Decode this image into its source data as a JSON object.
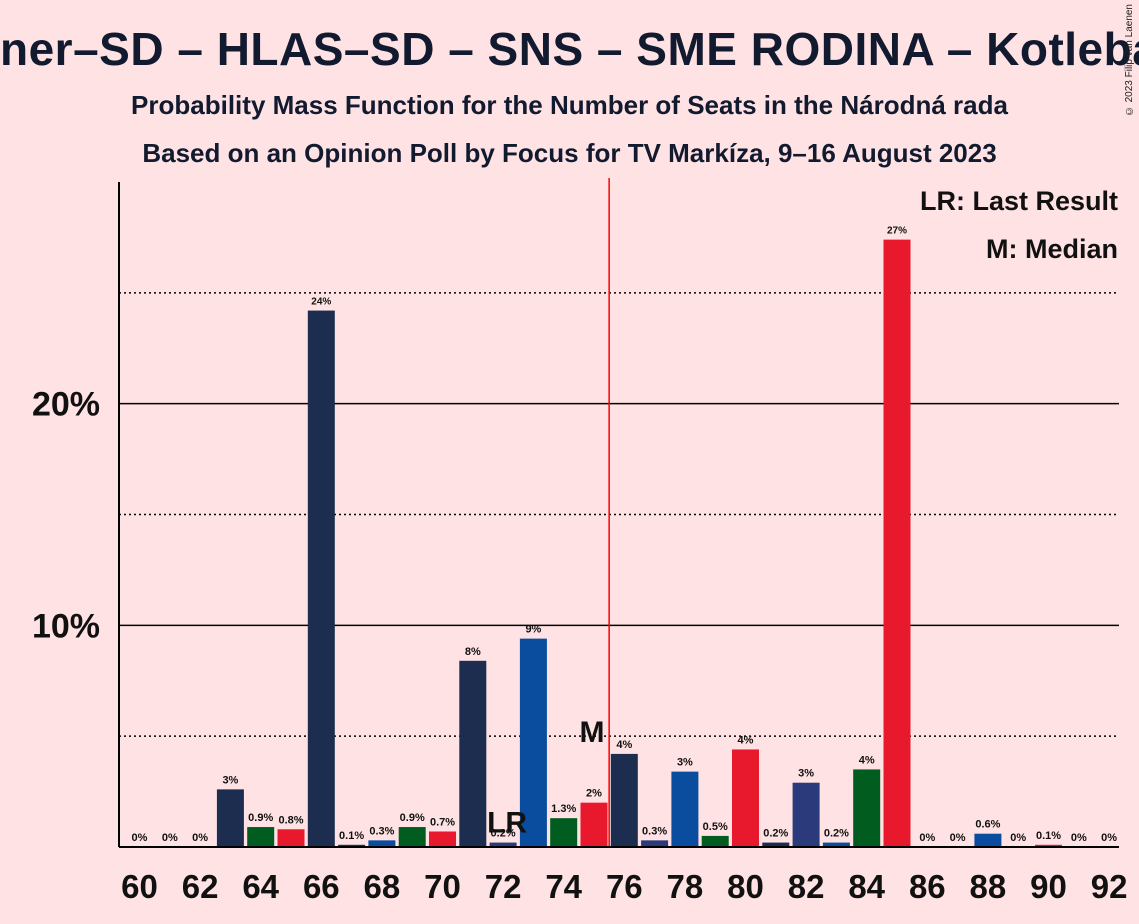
{
  "title": "ner–SD – HLAS–SD – SNS – SME RODINA – Kotleba–ĽS",
  "subtitle": "Probability Mass Function for the Number of Seats in the Národná rada",
  "subtitle2": "Based on an Opinion Poll by Focus for TV Markíza, 9–16 August 2023",
  "copyright": "© 2023 Filip van Laenen",
  "legend": {
    "lr": "LR: Last Result",
    "m": "M: Median"
  },
  "colors": {
    "background": "#ffe2e4",
    "majority_line": "#ff0000"
  },
  "chart_data": {
    "type": "bar",
    "ylim": [
      0,
      30
    ],
    "y_ticks": [
      10,
      20
    ],
    "y_tick_labels": [
      "10%",
      "20%"
    ],
    "dotted_gridlines": [
      5,
      15,
      25
    ],
    "x": [
      60,
      61,
      62,
      63,
      64,
      65,
      66,
      67,
      68,
      69,
      70,
      71,
      72,
      73,
      74,
      75,
      76,
      77,
      78,
      79,
      80,
      81,
      82,
      83,
      84,
      85,
      86,
      87,
      88,
      89,
      90,
      91,
      92
    ],
    "x_tick_labels": [
      "60",
      "62",
      "64",
      "66",
      "68",
      "70",
      "72",
      "74",
      "76",
      "78",
      "80",
      "82",
      "84",
      "86",
      "88",
      "90",
      "92"
    ],
    "values": [
      0,
      0,
      0,
      2.6,
      0.9,
      0.8,
      24.2,
      0.1,
      0.3,
      0.9,
      0.7,
      8.4,
      0.2,
      9.4,
      1.3,
      2.0,
      4.2,
      0.3,
      3.4,
      0.5,
      4.4,
      0.2,
      2.9,
      0.2,
      3.5,
      27.4,
      0,
      0,
      0.6,
      0,
      0.1,
      0,
      0
    ],
    "labels": [
      "0%",
      "0%",
      "0%",
      "3%",
      "0.9%",
      "0.8%",
      "24%",
      "0.1%",
      "0.3%",
      "0.9%",
      "0.7%",
      "8%",
      "0.2%",
      "9%",
      "1.3%",
      "2%",
      "4%",
      "0.3%",
      "3%",
      "0.5%",
      "4%",
      "0.2%",
      "3%",
      "0.2%",
      "4%",
      "27%",
      "0%",
      "0%",
      "0.6%",
      "0%",
      "0.1%",
      "0%",
      "0%"
    ],
    "bar_colors": [
      "#1c2d4f",
      "#005c1f",
      "#e8192c",
      "#1c2d4f",
      "#005c1f",
      "#e8192c",
      "#1c2d4f",
      "#1c2d4f",
      "#0a4c9e",
      "#005c1f",
      "#e8192c",
      "#1c2d4f",
      "#2a3a7a",
      "#0a4c9e",
      "#005c1f",
      "#e8192c",
      "#1c2d4f",
      "#2a3a7a",
      "#0a4c9e",
      "#005c1f",
      "#e8192c",
      "#1c2d4f",
      "#2a3a7a",
      "#0a4c9e",
      "#005c1f",
      "#e8192c",
      "#1c2d4f",
      "#2a3a7a",
      "#0a4c9e",
      "#005c1f",
      "#e8192c",
      "#1c2d4f",
      "#2a3a7a"
    ],
    "last_result_seat": 72,
    "median_seat": 75,
    "majority_line_x": 75.5,
    "marker_lr": "LR",
    "marker_m": "M"
  }
}
